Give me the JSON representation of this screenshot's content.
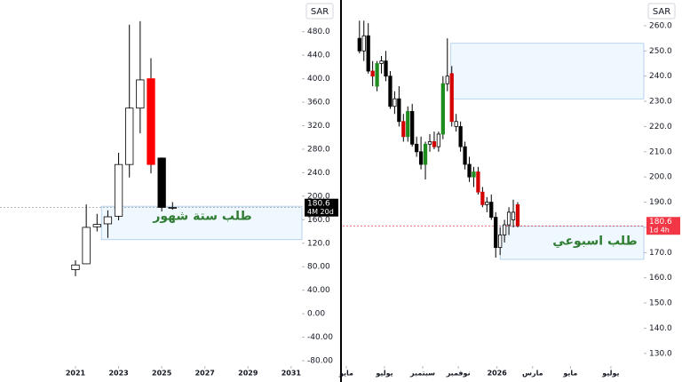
{
  "chart_data": [
    {
      "type": "candlestick",
      "axis_label": "SAR",
      "x": [
        2021,
        2021.5,
        2022,
        2022.5,
        2023,
        2023.5,
        2024,
        2024.5,
        2025,
        2025.5
      ],
      "open": [
        75,
        85,
        148,
        153,
        166,
        254,
        350,
        400,
        265,
        181
      ],
      "high": [
        91,
        186,
        170,
        176,
        274,
        492,
        498,
        435,
        266,
        190
      ],
      "low": [
        64,
        85,
        140,
        129,
        159,
        232,
        307,
        239,
        174,
        177
      ],
      "close": [
        83,
        147,
        152,
        165,
        254,
        350,
        398,
        254,
        181,
        180.6
      ],
      "colors": [
        "#ffffff",
        "#ffffff",
        "#ffffff",
        "#ffffff",
        "#ffffff",
        "#ffffff",
        "#ffffff",
        "#ff0000",
        "#000000",
        "#ffffff"
      ],
      "xlim": [
        2017.5,
        2031.5
      ],
      "xticks": [
        2021,
        2023,
        2025,
        2027,
        2029,
        2031
      ],
      "ylim": [
        -89,
        534
      ],
      "yticks": [
        {
          "value": 480,
          "label": "480.0"
        },
        {
          "value": 440,
          "label": "440.0"
        },
        {
          "value": 400,
          "label": "400.0"
        },
        {
          "value": 360,
          "label": "360.0"
        },
        {
          "value": 320,
          "label": "320.0"
        },
        {
          "value": 280,
          "label": "280.0"
        },
        {
          "value": 240,
          "label": "240.0"
        },
        {
          "value": 200,
          "label": "200.0"
        },
        {
          "value": 160,
          "label": "160.0"
        },
        {
          "value": 120,
          "label": "120.0"
        },
        {
          "value": 80,
          "label": "80.00"
        },
        {
          "value": 40,
          "label": "40.00"
        },
        {
          "value": 0,
          "label": "0.00"
        },
        {
          "value": -40,
          "label": "-40.00"
        },
        {
          "value": -80,
          "label": "-80.00"
        }
      ],
      "zones": [
        {
          "x0": 2022.2,
          "y0": 126,
          "y1": 183
        }
      ],
      "annotation": "طلب ستة شهور",
      "last_price": 180.6,
      "countdown": "4M 20d",
      "price_box_color": "#000000"
    },
    {
      "type": "candlestick",
      "axis_label": "SAR",
      "x": [
        3,
        4,
        5,
        6,
        7,
        8,
        9,
        10,
        11,
        12,
        13,
        14,
        15,
        16,
        17,
        18,
        19,
        20,
        21,
        22,
        23,
        24,
        25,
        26,
        27,
        28,
        29,
        30,
        31,
        32,
        33,
        34,
        35,
        36,
        37,
        38,
        39
      ],
      "open": [
        255,
        250,
        256,
        242,
        236,
        245,
        246,
        240,
        228,
        231,
        222,
        216,
        226,
        213,
        210,
        205,
        213,
        214,
        212,
        217,
        237,
        241,
        222,
        220,
        212,
        205,
        200,
        202,
        194,
        189,
        190,
        184,
        172,
        177,
        181,
        186,
        189
      ],
      "high": [
        262,
        262,
        261,
        246,
        246,
        248,
        250,
        242,
        234,
        236,
        225,
        228,
        229,
        216,
        216,
        214,
        217,
        218,
        218,
        240,
        255,
        244,
        225,
        222,
        214,
        208,
        204,
        204,
        196,
        192,
        193,
        186,
        180,
        183,
        188,
        191,
        190
      ],
      "low": [
        249,
        246,
        241,
        236,
        234,
        241,
        238,
        227,
        225,
        220,
        214,
        214,
        212,
        208,
        203,
        199,
        210,
        211,
        210,
        215,
        234,
        220,
        218,
        210,
        203,
        198,
        196,
        193,
        188,
        186,
        183,
        168,
        169,
        174,
        177,
        180,
        180
      ],
      "close": [
        250,
        256,
        242,
        240,
        245,
        246,
        240,
        228,
        231,
        222,
        216,
        226,
        213,
        210,
        205,
        213,
        214,
        212,
        217,
        237,
        240,
        222,
        220,
        212,
        205,
        200,
        202,
        194,
        189,
        190,
        184,
        172,
        177,
        181,
        186,
        183,
        180.6
      ],
      "colors": [
        "#000000",
        "#ffffff",
        "#000000",
        "#d40000",
        "#1e8c1e",
        "#ffffff",
        "#000000",
        "#000000",
        "#ffffff",
        "#000000",
        "#d40000",
        "#1e8c1e",
        "#000000",
        "#000000",
        "#000000",
        "#1e8c1e",
        "#ffffff",
        "#d40000",
        "#ffffff",
        "#1e8c1e",
        "#ffffff",
        "#d40000",
        "#ffffff",
        "#000000",
        "#000000",
        "#000000",
        "#1e8c1e",
        "#d40000",
        "#d40000",
        "#ffffff",
        "#000000",
        "#000000",
        "#ffffff",
        "#ffffff",
        "#ffffff",
        "#ffffff",
        "#d40000"
      ],
      "xlim": [
        -0.8,
        67.7
      ],
      "xticks": [
        {
          "value": 0,
          "label": "مايو"
        },
        {
          "value": 8.7,
          "label": "يوليو"
        },
        {
          "value": 17.4,
          "label": "سبتمبر"
        },
        {
          "value": 25.5,
          "label": "نوفمبر"
        },
        {
          "value": 34.3,
          "label": "2026"
        },
        {
          "value": 42.4,
          "label": "مارس"
        },
        {
          "value": 51,
          "label": "مايو"
        },
        {
          "value": 60.2,
          "label": "يوليو"
        }
      ],
      "ylim": [
        125,
        270.2
      ],
      "yticks": [
        {
          "value": 260,
          "label": "260.0"
        },
        {
          "value": 250,
          "label": "250.0"
        },
        {
          "value": 240,
          "label": "240.0"
        },
        {
          "value": 230,
          "label": "230.0"
        },
        {
          "value": 220,
          "label": "220.0"
        },
        {
          "value": 210,
          "label": "210.0"
        },
        {
          "value": 200,
          "label": "200.0"
        },
        {
          "value": 190,
          "label": "190.0"
        },
        {
          "value": 180,
          "label": "180.0"
        },
        {
          "value": 170,
          "label": "170.0"
        },
        {
          "value": 160,
          "label": "160.0"
        },
        {
          "value": 150,
          "label": "150.0"
        },
        {
          "value": 140,
          "label": "140.0"
        },
        {
          "value": 130,
          "label": "130.0"
        }
      ],
      "zones": [
        {
          "x0": 23.8,
          "y0": 231,
          "y1": 253
        },
        {
          "x0": 35,
          "y0": 167.3,
          "y1": 180.4
        }
      ],
      "annotation": "طلب اسبوعي",
      "last_price": 180.6,
      "countdown": "1d 4h",
      "price_box_color": "#f23645"
    }
  ]
}
